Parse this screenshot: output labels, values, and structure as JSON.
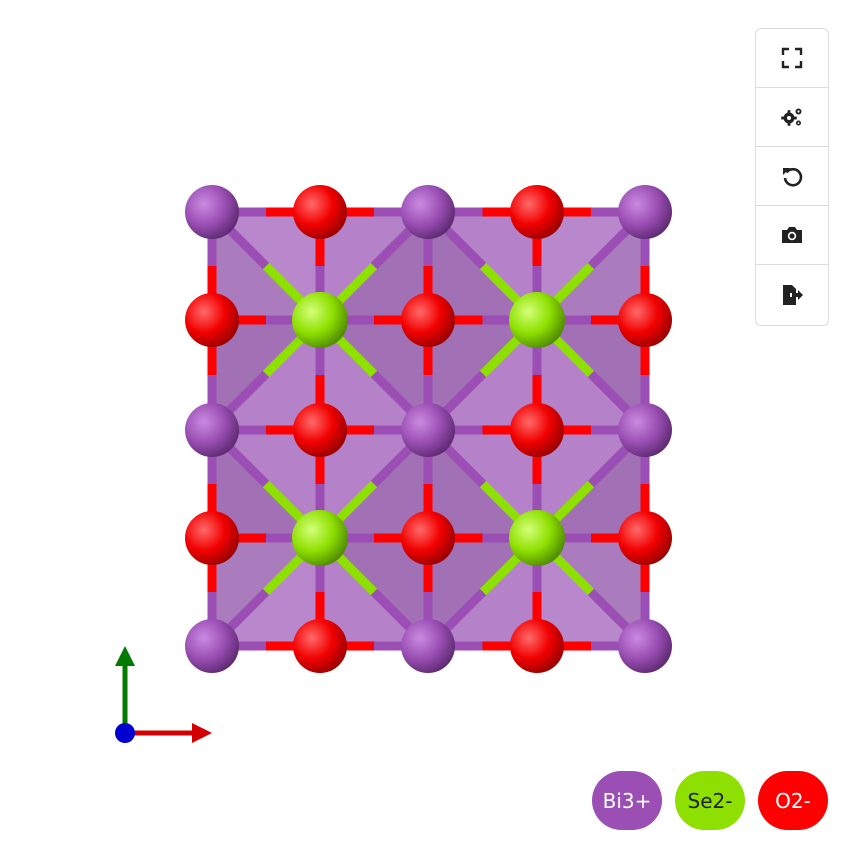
{
  "toolbar": {
    "buttons": [
      {
        "icon": "fullscreen-icon",
        "action": "fullscreen"
      },
      {
        "icon": "settings-icon",
        "action": "settings"
      },
      {
        "icon": "reset-icon",
        "action": "reset-view"
      },
      {
        "icon": "camera-icon",
        "action": "screenshot"
      },
      {
        "icon": "export-icon",
        "action": "export"
      }
    ]
  },
  "legend": {
    "items": [
      {
        "label": "Bi3+",
        "color": "#9b4fb4",
        "text_color": "#ffffff"
      },
      {
        "label": "Se2-",
        "color": "#8ee000",
        "text_color": "#222222"
      },
      {
        "label": "O2-",
        "color": "#ff0000",
        "text_color": "#ffffff"
      }
    ]
  },
  "colors": {
    "bi": "#9b4fb4",
    "se": "#8ee000",
    "o": "#ff0000",
    "polyhedron": "#8a3fa6",
    "axis_x": "#d40000",
    "axis_y": "#007a00",
    "axis_z": "#0000d0"
  }
}
